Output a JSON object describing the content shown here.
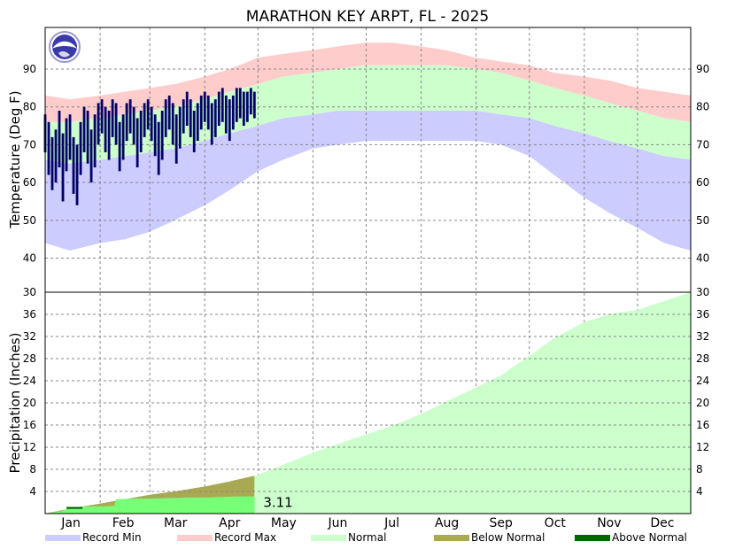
{
  "chart_data": {
    "type": "area",
    "title": "MARATHON KEY ARPT, FL - 2025",
    "months": [
      "Jan",
      "Feb",
      "Mar",
      "Apr",
      "May",
      "Jun",
      "Jul",
      "Aug",
      "Sep",
      "Oct",
      "Nov",
      "Dec"
    ],
    "temperature": {
      "ylabel": "Temperature (Deg F)",
      "ylim": [
        31,
        101
      ],
      "ticks": [
        40,
        50,
        60,
        70,
        80,
        90
      ],
      "record_max": [
        [
          1,
          83
        ],
        [
          15,
          82
        ],
        [
          32,
          83
        ],
        [
          46,
          84
        ],
        [
          60,
          85
        ],
        [
          74,
          86
        ],
        [
          91,
          88
        ],
        [
          105,
          90
        ],
        [
          121,
          93
        ],
        [
          135,
          94
        ],
        [
          152,
          95
        ],
        [
          166,
          96
        ],
        [
          182,
          97
        ],
        [
          196,
          97
        ],
        [
          213,
          96
        ],
        [
          227,
          95
        ],
        [
          244,
          93
        ],
        [
          258,
          92
        ],
        [
          274,
          91
        ],
        [
          288,
          89
        ],
        [
          305,
          88
        ],
        [
          319,
          87
        ],
        [
          335,
          85
        ],
        [
          350,
          84
        ],
        [
          365,
          83
        ]
      ],
      "normal_high": [
        [
          1,
          76
        ],
        [
          15,
          76
        ],
        [
          32,
          77
        ],
        [
          46,
          78
        ],
        [
          60,
          79
        ],
        [
          74,
          80
        ],
        [
          91,
          82
        ],
        [
          105,
          84
        ],
        [
          121,
          86
        ],
        [
          135,
          88
        ],
        [
          152,
          89
        ],
        [
          166,
          90
        ],
        [
          182,
          91
        ],
        [
          196,
          91
        ],
        [
          213,
          91
        ],
        [
          227,
          91
        ],
        [
          244,
          90
        ],
        [
          258,
          89
        ],
        [
          274,
          87
        ],
        [
          288,
          85
        ],
        [
          305,
          83
        ],
        [
          319,
          81
        ],
        [
          335,
          79
        ],
        [
          350,
          77
        ],
        [
          365,
          76
        ]
      ],
      "normal_low": [
        [
          1,
          66
        ],
        [
          15,
          65
        ],
        [
          32,
          66
        ],
        [
          46,
          67
        ],
        [
          60,
          68
        ],
        [
          74,
          69
        ],
        [
          91,
          71
        ],
        [
          105,
          73
        ],
        [
          121,
          75
        ],
        [
          135,
          77
        ],
        [
          152,
          78
        ],
        [
          166,
          79
        ],
        [
          182,
          79
        ],
        [
          196,
          79
        ],
        [
          213,
          79
        ],
        [
          227,
          79
        ],
        [
          244,
          79
        ],
        [
          258,
          78
        ],
        [
          274,
          77
        ],
        [
          288,
          75
        ],
        [
          305,
          73
        ],
        [
          319,
          71
        ],
        [
          335,
          69
        ],
        [
          350,
          67
        ],
        [
          365,
          66
        ]
      ],
      "record_min": [
        [
          1,
          44
        ],
        [
          15,
          42
        ],
        [
          32,
          44
        ],
        [
          46,
          45
        ],
        [
          60,
          47
        ],
        [
          74,
          50
        ],
        [
          91,
          54
        ],
        [
          105,
          58
        ],
        [
          121,
          63
        ],
        [
          135,
          66
        ],
        [
          152,
          69
        ],
        [
          166,
          70
        ],
        [
          182,
          71
        ],
        [
          196,
          71
        ],
        [
          213,
          71
        ],
        [
          227,
          71
        ],
        [
          244,
          71
        ],
        [
          258,
          70
        ],
        [
          274,
          67
        ],
        [
          288,
          62
        ],
        [
          305,
          56
        ],
        [
          319,
          52
        ],
        [
          335,
          48
        ],
        [
          350,
          44
        ],
        [
          365,
          42
        ]
      ],
      "observed": [
        [
          1,
          68,
          78
        ],
        [
          3,
          62,
          76
        ],
        [
          5,
          58,
          72
        ],
        [
          7,
          60,
          74
        ],
        [
          9,
          64,
          79
        ],
        [
          11,
          55,
          73
        ],
        [
          13,
          63,
          77
        ],
        [
          15,
          66,
          78
        ],
        [
          17,
          57,
          72
        ],
        [
          19,
          54,
          70
        ],
        [
          21,
          62,
          76
        ],
        [
          23,
          68,
          80
        ],
        [
          25,
          65,
          79
        ],
        [
          27,
          60,
          74
        ],
        [
          29,
          64,
          78
        ],
        [
          31,
          70,
          81
        ],
        [
          33,
          73,
          82
        ],
        [
          35,
          68,
          80
        ],
        [
          37,
          66,
          79
        ],
        [
          39,
          72,
          82
        ],
        [
          41,
          70,
          81
        ],
        [
          43,
          63,
          76
        ],
        [
          45,
          66,
          78
        ],
        [
          47,
          71,
          81
        ],
        [
          49,
          73,
          82
        ],
        [
          51,
          70,
          80
        ],
        [
          53,
          64,
          77
        ],
        [
          55,
          68,
          79
        ],
        [
          57,
          72,
          81
        ],
        [
          59,
          74,
          82
        ],
        [
          61,
          71,
          80
        ],
        [
          63,
          67,
          78
        ],
        [
          65,
          62,
          76
        ],
        [
          67,
          66,
          79
        ],
        [
          69,
          72,
          82
        ],
        [
          71,
          74,
          83
        ],
        [
          73,
          70,
          81
        ],
        [
          75,
          65,
          78
        ],
        [
          77,
          69,
          80
        ],
        [
          79,
          73,
          82
        ],
        [
          81,
          75,
          84
        ],
        [
          83,
          72,
          82
        ],
        [
          85,
          68,
          79
        ],
        [
          87,
          71,
          81
        ],
        [
          89,
          74,
          83
        ],
        [
          91,
          76,
          84
        ],
        [
          93,
          74,
          83
        ],
        [
          95,
          70,
          81
        ],
        [
          97,
          72,
          82
        ],
        [
          99,
          75,
          84
        ],
        [
          101,
          76,
          85
        ],
        [
          103,
          73,
          83
        ],
        [
          105,
          71,
          82
        ],
        [
          107,
          74,
          83
        ],
        [
          109,
          76,
          85
        ],
        [
          111,
          77,
          85
        ],
        [
          113,
          75,
          84
        ],
        [
          115,
          76,
          84
        ],
        [
          117,
          78,
          85
        ],
        [
          119,
          77,
          84
        ]
      ]
    },
    "precipitation": {
      "ylabel": "Precipitation (Inches)",
      "ylim": [
        0,
        40
      ],
      "ticks": [
        4,
        8,
        12,
        16,
        20,
        24,
        28,
        32,
        36
      ],
      "top_label": "30",
      "normal_cumulative": [
        [
          1,
          0
        ],
        [
          15,
          0.9
        ],
        [
          32,
          1.8
        ],
        [
          46,
          2.6
        ],
        [
          60,
          3.4
        ],
        [
          74,
          4.0
        ],
        [
          91,
          4.9
        ],
        [
          105,
          5.8
        ],
        [
          121,
          7.0
        ],
        [
          135,
          8.8
        ],
        [
          152,
          11.0
        ],
        [
          166,
          12.6
        ],
        [
          182,
          14.3
        ],
        [
          196,
          15.8
        ],
        [
          213,
          18.0
        ],
        [
          227,
          20.2
        ],
        [
          244,
          22.8
        ],
        [
          258,
          25.0
        ],
        [
          274,
          28.5
        ],
        [
          288,
          31.7
        ],
        [
          305,
          34.6
        ],
        [
          319,
          36.0
        ],
        [
          335,
          36.8
        ],
        [
          350,
          38.4
        ],
        [
          365,
          40.0
        ]
      ],
      "observed_cumulative": [
        [
          1,
          0
        ],
        [
          10,
          0.4
        ],
        [
          15,
          1.1
        ],
        [
          22,
          1.2
        ],
        [
          28,
          1.3
        ],
        [
          32,
          1.3
        ],
        [
          40,
          1.4
        ],
        [
          41,
          2.6
        ],
        [
          50,
          2.7
        ],
        [
          60,
          2.7
        ],
        [
          70,
          2.8
        ],
        [
          80,
          2.9
        ],
        [
          90,
          2.9
        ],
        [
          100,
          3.0
        ],
        [
          110,
          3.1
        ],
        [
          119,
          3.11
        ]
      ],
      "ytd_label": "3.11"
    },
    "legend": [
      "Record Min",
      "Record Max",
      "Normal",
      "Below Normal",
      "Above Normal"
    ],
    "colors": {
      "record_min": "#ccccff",
      "record_max": "#ffcccc",
      "normal": "#ccffcc",
      "below_normal": "#a9a853",
      "above_normal": "#006600",
      "observed_temp": "#000066",
      "observed_precip": "#77ff77"
    }
  }
}
